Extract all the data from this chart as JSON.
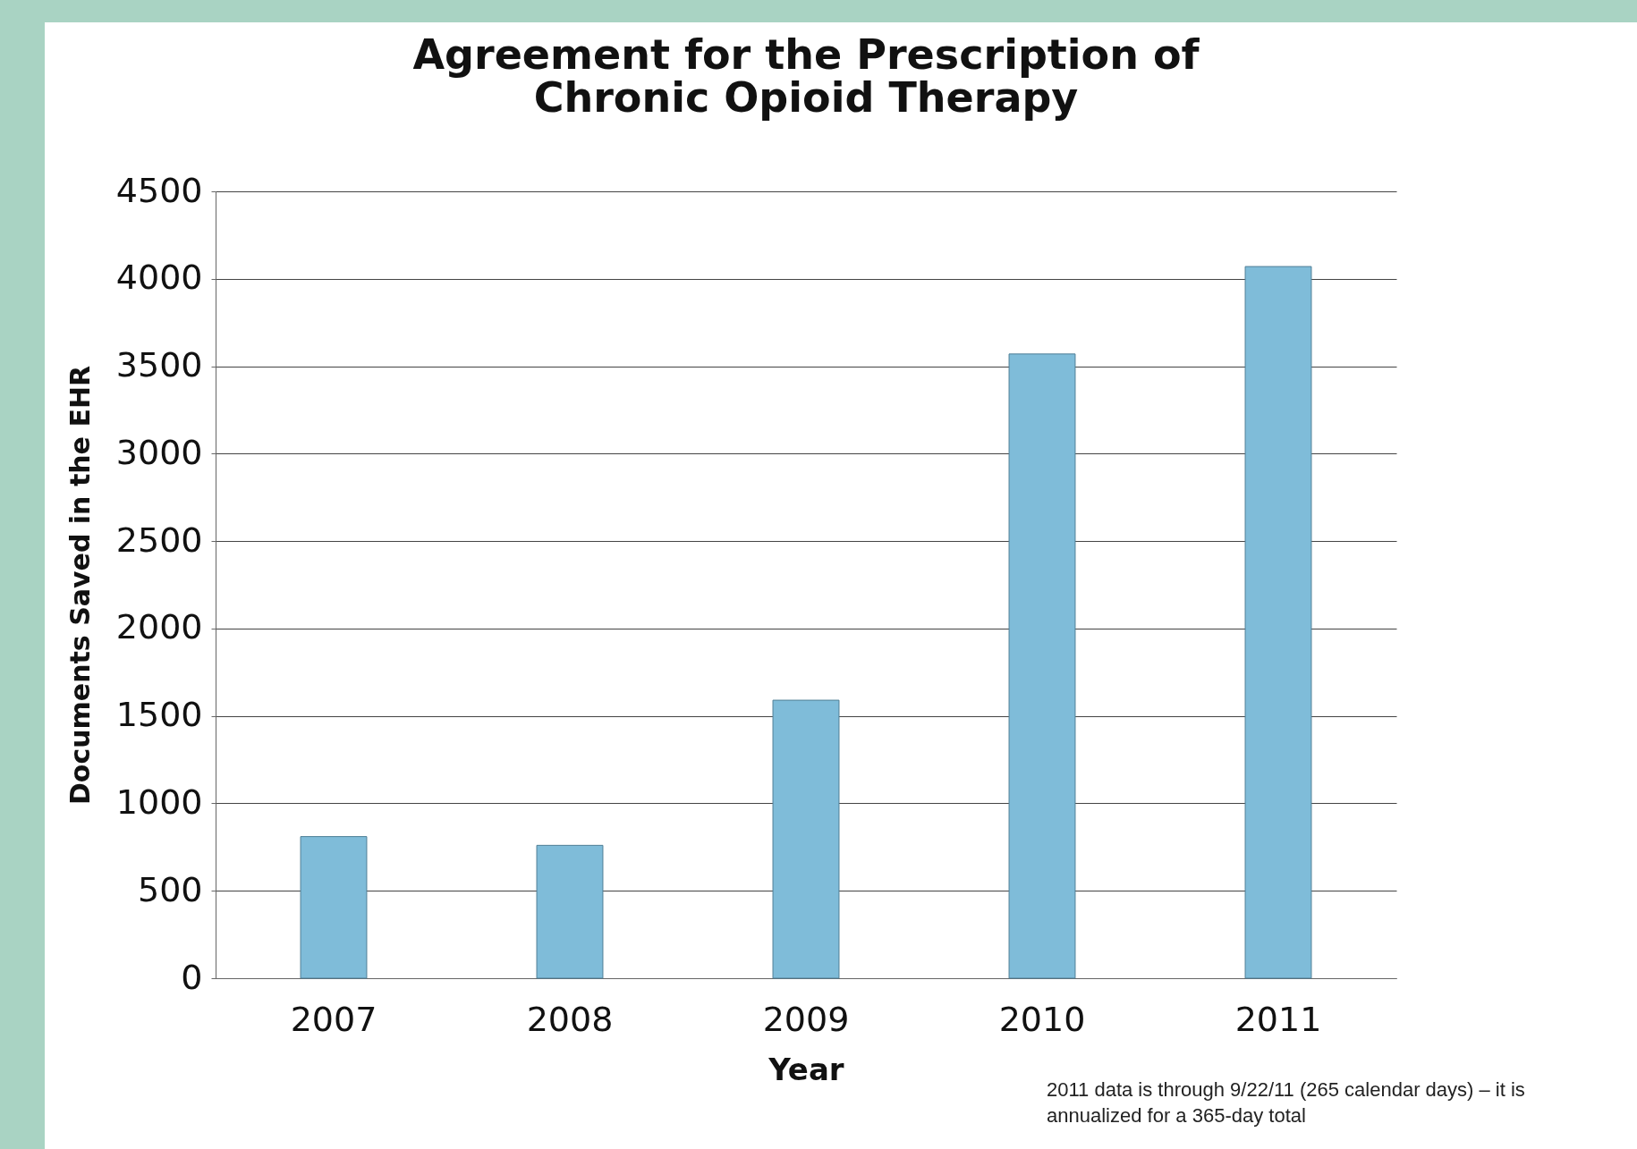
{
  "chart_data": {
    "type": "bar",
    "title": "Agreement for the Prescription of Chronic Opioid Therapy",
    "xlabel": "Year",
    "ylabel": "Documents Saved in the EHR",
    "categories": [
      "2007",
      "2008",
      "2009",
      "2010",
      "2011"
    ],
    "values": [
      810,
      760,
      1590,
      3570,
      4070
    ],
    "color": "#7fbcd9",
    "ylim": [
      0,
      4500
    ],
    "yticks": [
      0,
      500,
      1000,
      1500,
      2000,
      2500,
      3000,
      3500,
      4000,
      4500
    ],
    "grid": "y",
    "annotations": [
      "2011 data is through 9/22/11 (265 calendar days) – it is annualized for a 365-day total"
    ]
  }
}
